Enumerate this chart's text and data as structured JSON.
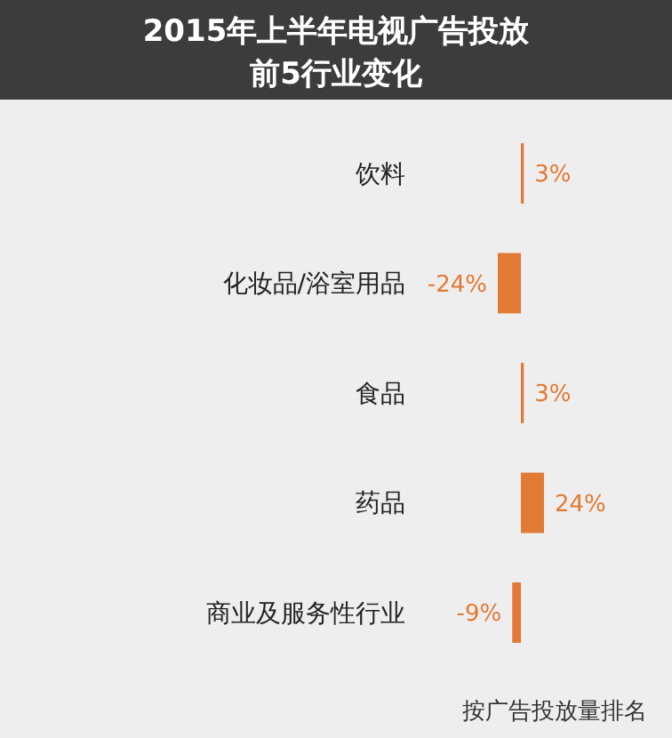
{
  "chart_data": {
    "type": "bar",
    "orientation": "horizontal",
    "title": "2015年上半年电视广告投放",
    "subtitle": "前5行业变化",
    "categories": [
      "饮料",
      "化妆品/浴室用品",
      "食品",
      "药品",
      "商业及服务性行业"
    ],
    "values": [
      3,
      -24,
      3,
      24,
      -9
    ],
    "color": "#e07a35",
    "value_labels": [
      "3%",
      "-24%",
      "3%",
      "24%",
      "-9%"
    ],
    "annotations": [
      "按广告投放量排名"
    ]
  }
}
